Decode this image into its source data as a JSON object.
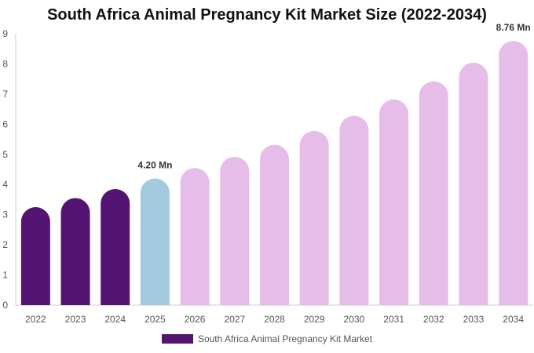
{
  "chart_data": {
    "type": "bar",
    "title": "South Africa Animal Pregnancy Kit Market Size (2022-2034)",
    "categories": [
      "2022",
      "2023",
      "2024",
      "2025",
      "2026",
      "2027",
      "2028",
      "2029",
      "2030",
      "2031",
      "2032",
      "2033",
      "2034"
    ],
    "series": [
      {
        "name": "South Africa Animal Pregnancy Kit Market",
        "values": [
          3.25,
          3.55,
          3.85,
          4.2,
          4.55,
          4.92,
          5.32,
          5.78,
          6.28,
          6.82,
          7.42,
          8.04,
          8.76
        ]
      }
    ],
    "data_labels": {
      "3": "4.20 Mn",
      "12": "8.76 Mn"
    },
    "ylim": [
      0,
      9
    ],
    "yticks": [
      0,
      1,
      2,
      3,
      4,
      5,
      6,
      7,
      8,
      9
    ],
    "xlabel": "",
    "ylabel": "",
    "grid": false,
    "legend_position": "bottom",
    "colors": {
      "historical": "#541472",
      "current": "#a4cadf",
      "forecast": "#e6bde8",
      "legend": "#541472"
    },
    "bar_groups": [
      "historical",
      "historical",
      "historical",
      "current",
      "forecast",
      "forecast",
      "forecast",
      "forecast",
      "forecast",
      "forecast",
      "forecast",
      "forecast",
      "forecast"
    ]
  }
}
